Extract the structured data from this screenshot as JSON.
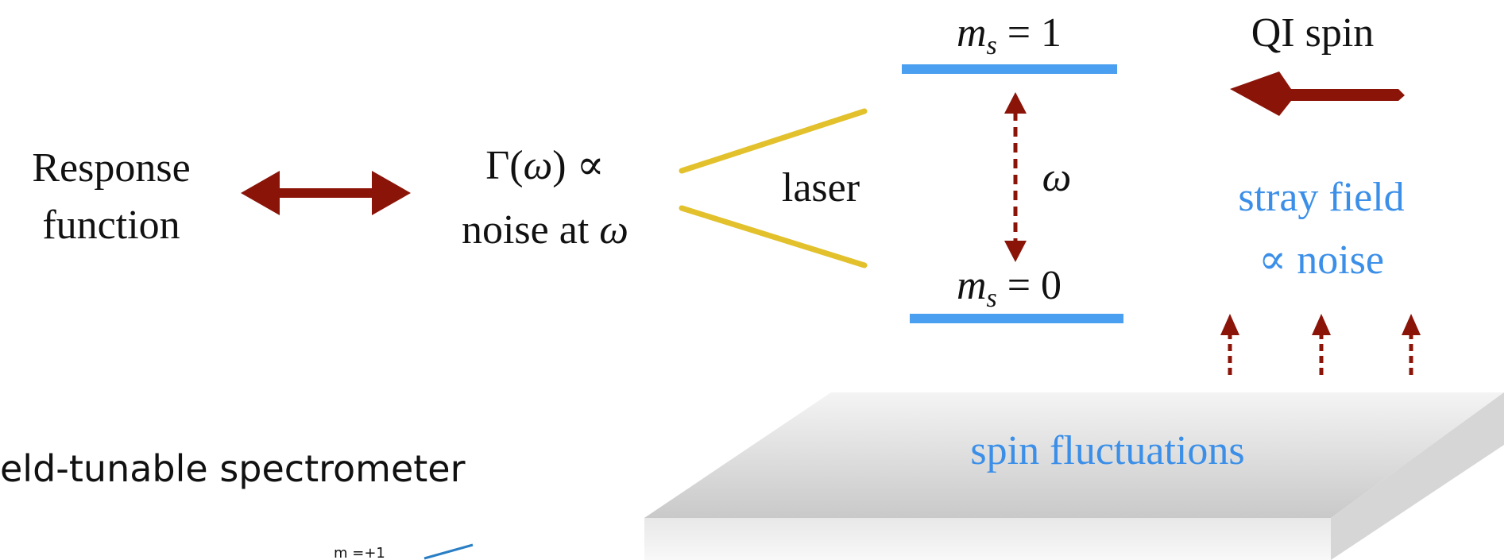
{
  "response": [
    "Response",
    "function"
  ],
  "gamma": [
    "Γ(",
    "ω",
    ") ∝"
  ],
  "noise": [
    "noise at ",
    "ω"
  ],
  "laser": "laser",
  "omega": "ω",
  "level_top": [
    "m",
    "s",
    " = 1"
  ],
  "level_bottom": [
    "m",
    "s",
    " = 0"
  ],
  "qi_spin": "QI spin",
  "stray": [
    "stray field",
    "∝ noise"
  ],
  "substrate": "spin fluctuations",
  "caption": "eld-tunable spectrometer",
  "inset_label": "m =+1"
}
